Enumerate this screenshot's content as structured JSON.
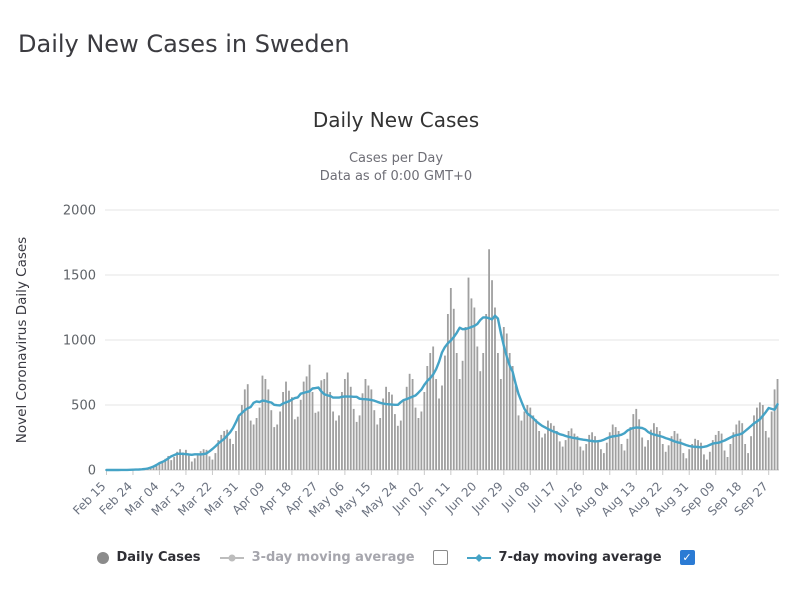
{
  "page": {
    "heading": "Daily New Cases in Sweden"
  },
  "chart": {
    "title": "Daily New Cases",
    "subtitle1": "Cases per Day",
    "subtitle2": "Data as of 0:00 GMT+0"
  },
  "legend": {
    "daily_cases": "Daily Cases",
    "ma3": "3-day moving average",
    "ma7": "7-day moving average",
    "ma3_checked": false,
    "ma7_checked": true
  },
  "icons": {
    "check": "✓"
  },
  "colors": {
    "bar": "#a0a0a0",
    "ma7_line": "#45a3c6",
    "checkbox_checked": "#2b7bd4",
    "legend_daily_marker": "#8b8b8b",
    "legend_ma3_marker": "#bdbdbd"
  },
  "chart_data": {
    "type": "bar",
    "title": "Daily New Cases",
    "xlabel": "",
    "ylabel": "Novel Coronavirus Daily Cases",
    "ylim": [
      0,
      2000
    ],
    "y_ticks": [
      0,
      500,
      1000,
      1500,
      2000
    ],
    "grid": true,
    "legend_position": "bottom",
    "x_tick_interval": 9,
    "x_tick_labels": [
      "Feb 15",
      "Feb 24",
      "Mar 04",
      "Mar 13",
      "Mar 22",
      "Mar 31",
      "Apr 09",
      "Apr 18",
      "Apr 27",
      "May 06",
      "May 15",
      "May 24",
      "Jun 02",
      "Jun 11",
      "Jun 20",
      "Jun 29",
      "Jul 08",
      "Jul 17",
      "Jul 26",
      "Aug 04",
      "Aug 13",
      "Aug 22",
      "Aug 31",
      "Sep 09",
      "Sep 18",
      "Sep 27"
    ],
    "series_info": [
      {
        "name": "Daily Cases",
        "type": "bar"
      },
      {
        "name": "7-day moving average",
        "type": "line",
        "derived": "7-day moving average of daily values",
        "window": 7
      }
    ],
    "values": [
      0,
      0,
      0,
      0,
      0,
      0,
      1,
      0,
      2,
      1,
      2,
      5,
      4,
      7,
      5,
      12,
      19,
      30,
      52,
      64,
      86,
      108,
      76,
      100,
      140,
      160,
      135,
      155,
      110,
      65,
      90,
      120,
      145,
      160,
      155,
      105,
      80,
      130,
      230,
      270,
      300,
      310,
      240,
      200,
      300,
      410,
      500,
      620,
      660,
      380,
      350,
      400,
      480,
      726,
      700,
      620,
      460,
      330,
      350,
      450,
      600,
      680,
      610,
      560,
      390,
      410,
      540,
      680,
      720,
      810,
      600,
      440,
      450,
      690,
      700,
      750,
      600,
      450,
      380,
      420,
      600,
      700,
      750,
      640,
      470,
      370,
      420,
      590,
      700,
      650,
      620,
      460,
      350,
      400,
      550,
      640,
      600,
      580,
      430,
      340,
      380,
      540,
      640,
      740,
      700,
      480,
      400,
      450,
      600,
      800,
      900,
      950,
      700,
      550,
      650,
      880,
      1200,
      1400,
      1240,
      900,
      700,
      840,
      1100,
      1480,
      1320,
      1250,
      950,
      760,
      900,
      1200,
      1698,
      1460,
      1250,
      900,
      700,
      1100,
      1050,
      900,
      800,
      650,
      420,
      380,
      450,
      500,
      480,
      420,
      390,
      300,
      250,
      280,
      380,
      360,
      340,
      300,
      220,
      180,
      230,
      300,
      320,
      280,
      260,
      180,
      150,
      200,
      270,
      290,
      260,
      230,
      160,
      130,
      210,
      290,
      350,
      330,
      300,
      200,
      150,
      240,
      330,
      430,
      470,
      390,
      250,
      180,
      230,
      310,
      360,
      330,
      300,
      200,
      140,
      190,
      260,
      300,
      280,
      240,
      130,
      90,
      160,
      200,
      240,
      230,
      210,
      120,
      80,
      140,
      230,
      270,
      300,
      280,
      150,
      100,
      200,
      290,
      350,
      380,
      360,
      200,
      130,
      260,
      420,
      480,
      520,
      500,
      300,
      250,
      450,
      620,
      700
    ]
  }
}
